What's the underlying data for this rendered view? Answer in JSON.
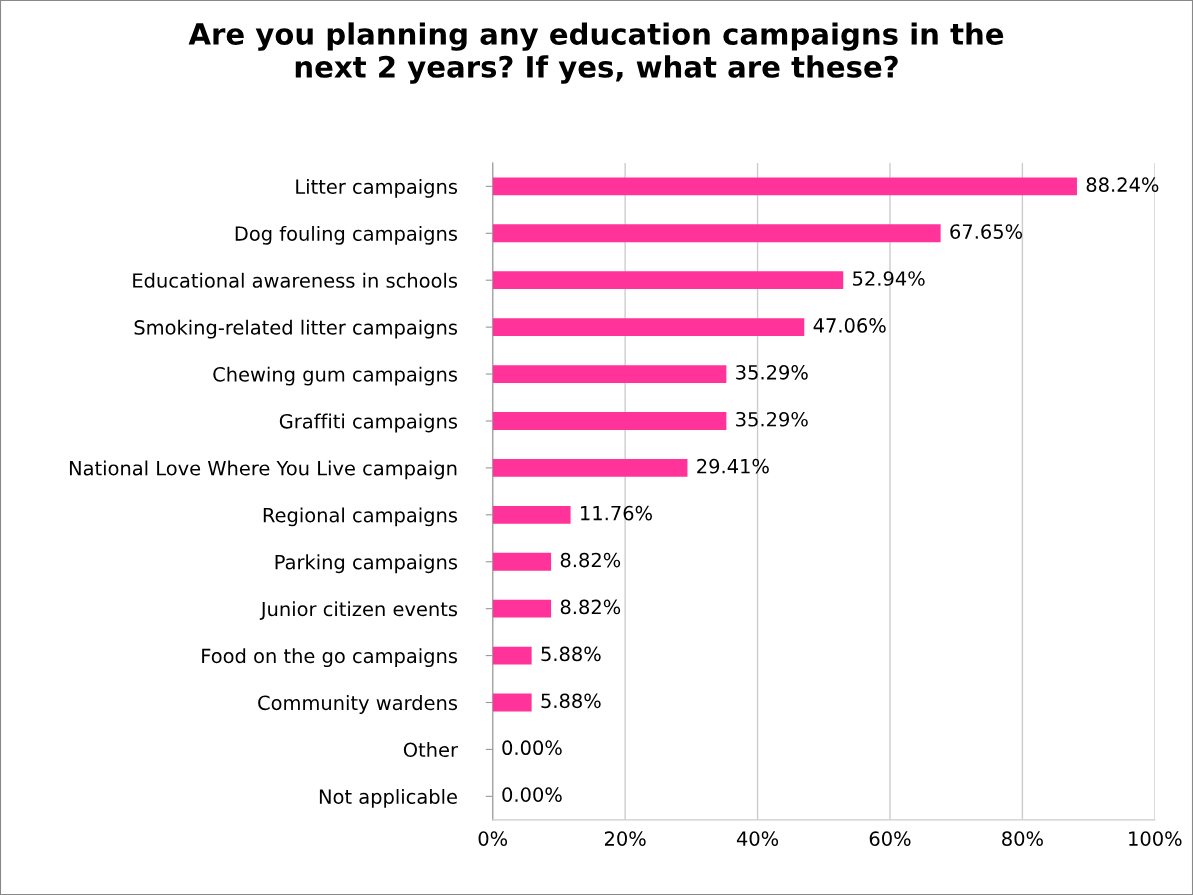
{
  "chart_data": {
    "type": "bar",
    "orientation": "horizontal",
    "title": "Are you planning any education campaigns in the\nnext 2 years? If yes, what are these?",
    "categories": [
      "Litter campaigns",
      "Dog fouling campaigns",
      "Educational awareness in schools",
      "Smoking-related litter campaigns",
      "Chewing gum campaigns",
      "Graffiti campaigns",
      "National Love Where You Live campaign",
      "Regional campaigns",
      "Parking campaigns",
      "Junior citizen events",
      "Food on the go campaigns",
      "Community wardens",
      "Other",
      "Not applicable"
    ],
    "values": [
      88.24,
      67.65,
      52.94,
      47.06,
      35.29,
      35.29,
      29.41,
      11.76,
      8.82,
      8.82,
      5.88,
      5.88,
      0,
      0
    ],
    "value_labels": [
      "88.24%",
      "67.65%",
      "52.94%",
      "47.06%",
      "35.29%",
      "35.29%",
      "29.41%",
      "11.76%",
      "8.82%",
      "8.82%",
      "5.88%",
      "5.88%",
      "0.00%",
      "0.00%"
    ],
    "color": "#ff3399",
    "xlim": [
      0,
      100
    ],
    "xticks": [
      {
        "value": 0,
        "label": "0%"
      },
      {
        "value": 20,
        "label": "20%"
      },
      {
        "value": 40,
        "label": "40%"
      },
      {
        "value": 60,
        "label": "60%"
      },
      {
        "value": 80,
        "label": "80%"
      },
      {
        "value": 100,
        "label": "100%"
      }
    ],
    "grid": "x"
  }
}
